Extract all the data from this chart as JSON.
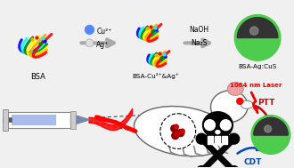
{
  "bg_color": "#f0f0f0",
  "bsa_label": "BSA",
  "bsa_cu_ag_label": "BSA-Cu²⁺&Ag⁺",
  "bsa_agcus_label": "BSA-Ag:CuS",
  "reagent1_label1": "Cu²⁺",
  "reagent1_label2": "Ag⁺",
  "reagent2_label1": "NaOH",
  "reagent2_label2": "Na₂S",
  "laser_label": "1064 nm Laser",
  "ptt_label": "PTT",
  "cdt_label": "CDT",
  "arrow_color": "#aaaaaa",
  "sphere_green": "#4dcc4d",
  "sphere_dark": "#333333",
  "sphere_mid": "#555555",
  "sphere_highlight": "#999999",
  "dot_cu_color": "#5588ff",
  "dot_ag_color": "#dddddd",
  "laser_color": "#ee0000",
  "ptt_color": "#cc0000",
  "cdt_color": "#0044bb"
}
